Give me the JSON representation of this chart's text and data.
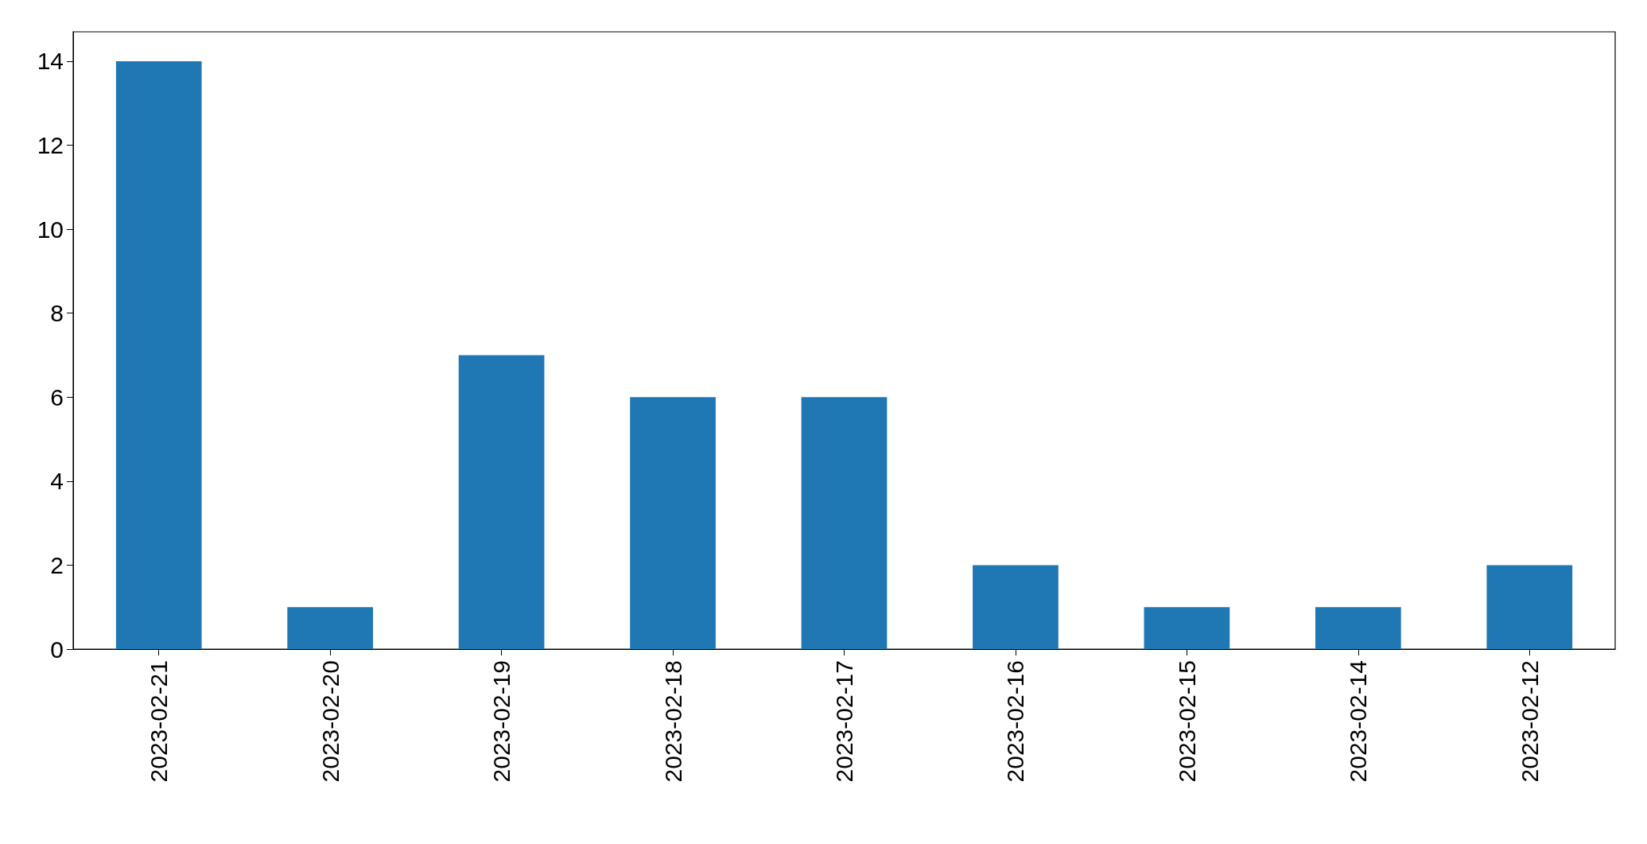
{
  "chart_data": {
    "type": "bar",
    "categories": [
      "2023-02-21",
      "2023-02-20",
      "2023-02-19",
      "2023-02-18",
      "2023-02-17",
      "2023-02-16",
      "2023-02-15",
      "2023-02-14",
      "2023-02-12"
    ],
    "values": [
      14,
      1,
      7,
      6,
      6,
      2,
      1,
      1,
      2
    ],
    "color": "#1f77b4",
    "ylim": [
      0,
      14.7
    ],
    "yticks": [
      0,
      2,
      4,
      6,
      8,
      10,
      12,
      14
    ]
  }
}
